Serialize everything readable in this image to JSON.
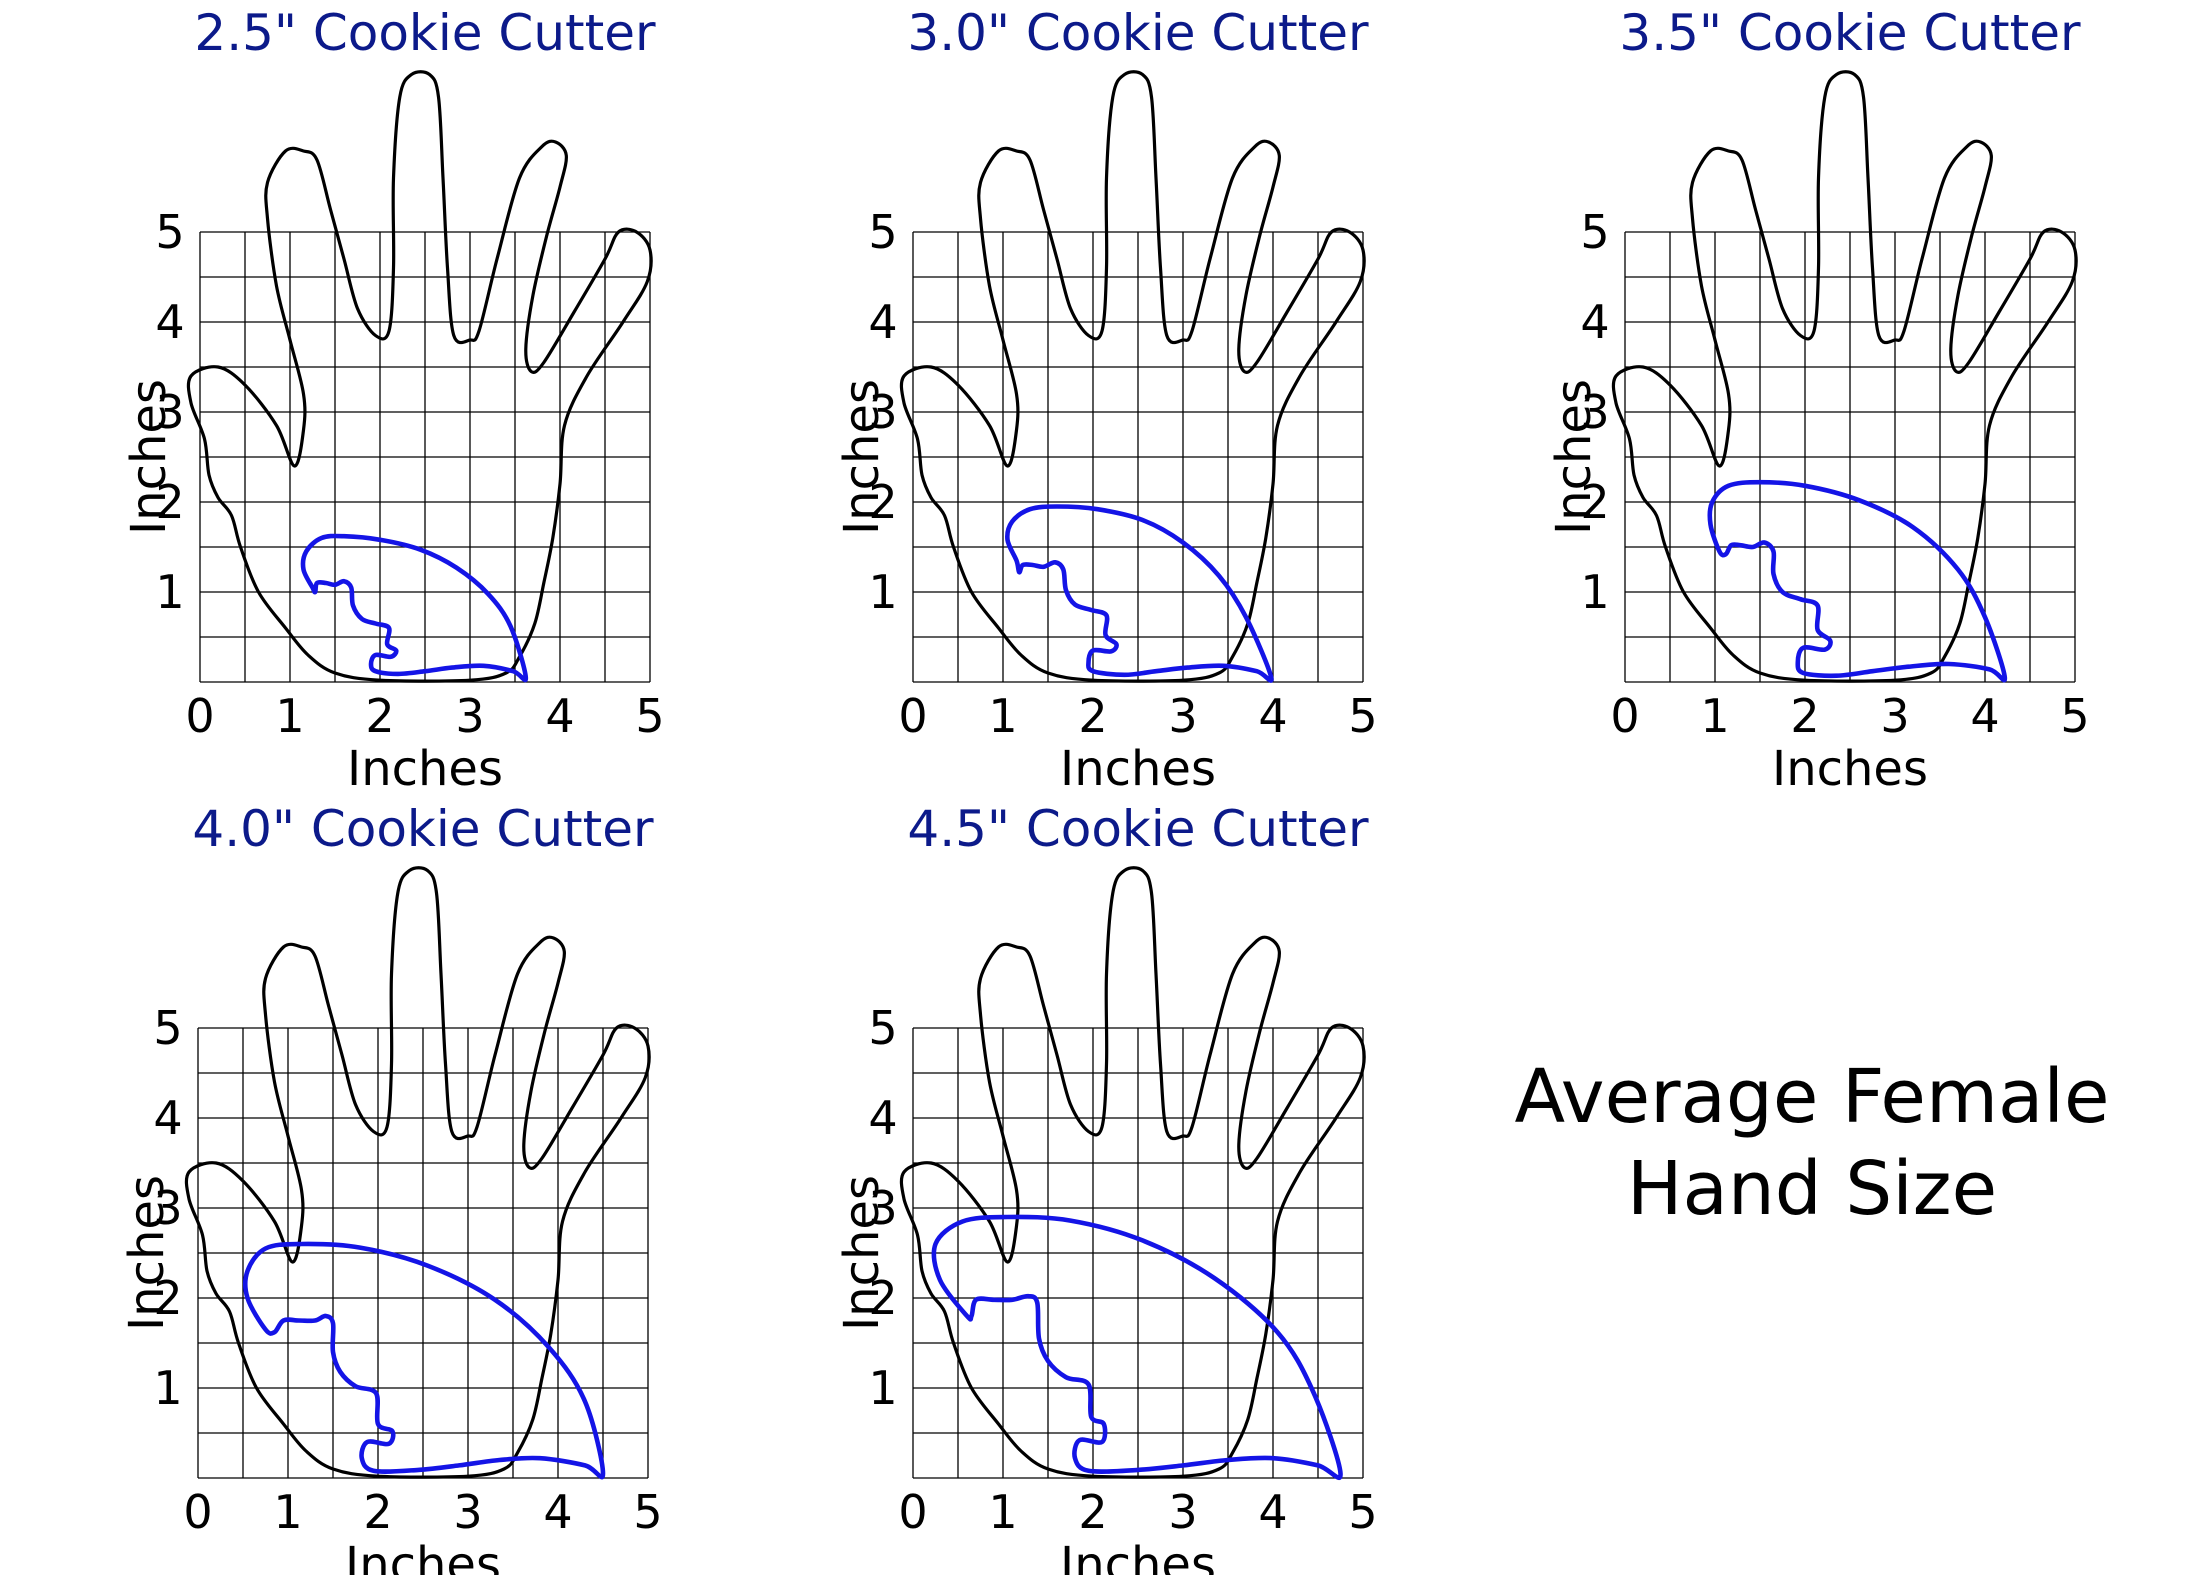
{
  "panels": [
    {
      "title": "2.5\" Cookie Cutter",
      "cutter_size_in": 2.5,
      "x_axis": {
        "label": "Inches",
        "ticks": [
          "0",
          "1",
          "2",
          "3",
          "4",
          "5"
        ]
      },
      "y_axis": {
        "label": "Inches",
        "ticks": [
          "1",
          "2",
          "3",
          "4",
          "5"
        ]
      }
    },
    {
      "title": "3.0\" Cookie Cutter",
      "cutter_size_in": 3.0,
      "x_axis": {
        "label": "Inches",
        "ticks": [
          "0",
          "1",
          "2",
          "3",
          "4",
          "5"
        ]
      },
      "y_axis": {
        "label": "Inches",
        "ticks": [
          "1",
          "2",
          "3",
          "4",
          "5"
        ]
      }
    },
    {
      "title": "3.5\" Cookie Cutter",
      "cutter_size_in": 3.5,
      "x_axis": {
        "label": "Inches",
        "ticks": [
          "0",
          "1",
          "2",
          "3",
          "4",
          "5"
        ]
      },
      "y_axis": {
        "label": "Inches",
        "ticks": [
          "1",
          "2",
          "3",
          "4",
          "5"
        ]
      }
    },
    {
      "title": "4.0\" Cookie Cutter",
      "cutter_size_in": 4.0,
      "x_axis": {
        "label": "Inches",
        "ticks": [
          "0",
          "1",
          "2",
          "3",
          "4",
          "5"
        ]
      },
      "y_axis": {
        "label": "Inches",
        "ticks": [
          "1",
          "2",
          "3",
          "4",
          "5"
        ]
      }
    },
    {
      "title": "4.5\" Cookie Cutter",
      "cutter_size_in": 4.5,
      "x_axis": {
        "label": "Inches",
        "ticks": [
          "0",
          "1",
          "2",
          "3",
          "4",
          "5"
        ]
      },
      "y_axis": {
        "label": "Inches",
        "ticks": [
          "1",
          "2",
          "3",
          "4",
          "5"
        ]
      }
    }
  ],
  "caption": {
    "line1": "Average Female",
    "line2": "Hand Size"
  },
  "colors": {
    "title": "#0c1a8a",
    "cutter": "#1414e6",
    "hand": "#000000",
    "grid": "#000000"
  }
}
